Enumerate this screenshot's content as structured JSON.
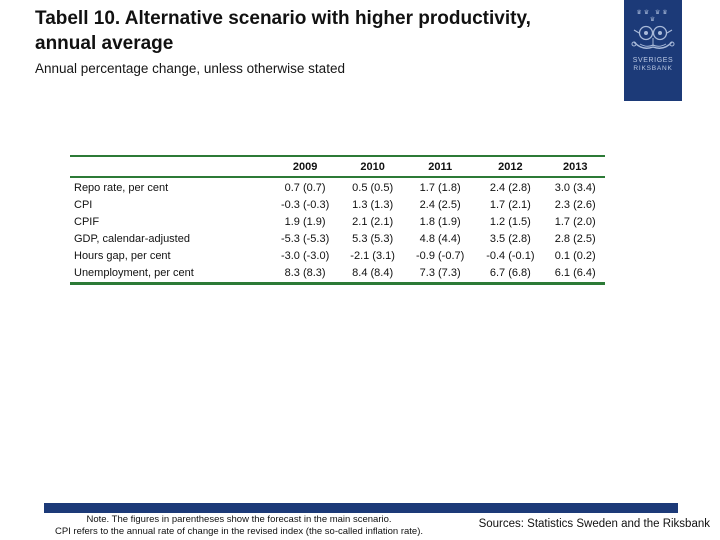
{
  "title": {
    "line1": "Tabell 10. Alternative scenario with higher productivity,",
    "line2": "annual average",
    "subtitle": "Annual percentage change, unless otherwise stated"
  },
  "logo": {
    "crowns_top": "♛♛ ♛♛",
    "crowns_bottom": "♛",
    "name_line1": "SVERIGES",
    "name_line2": "RIKSBANK"
  },
  "table": {
    "columns": [
      "",
      "2009",
      "2010",
      "2011",
      "2012",
      "2013"
    ],
    "rows": [
      {
        "label": "Repo rate, per cent",
        "values": [
          "0.7 (0.7)",
          "0.5 (0.5)",
          "1.7 (1.8)",
          "2.4 (2.8)",
          "3.0 (3.4)"
        ]
      },
      {
        "label": "CPI",
        "values": [
          "-0.3 (-0.3)",
          "1.3 (1.3)",
          "2.4 (2.5)",
          "1.7 (2.1)",
          "2.3 (2.6)"
        ]
      },
      {
        "label": "CPIF",
        "values": [
          "1.9 (1.9)",
          "2.1 (2.1)",
          "1.8 (1.9)",
          "1.2 (1.5)",
          "1.7 (2.0)"
        ]
      },
      {
        "label": "GDP, calendar-adjusted",
        "values": [
          "-5.3 (-5.3)",
          "5.3 (5.3)",
          "4.8 (4.4)",
          "3.5 (2.8)",
          "2.8 (2.5)"
        ]
      },
      {
        "label": "Hours gap, per cent",
        "values": [
          "-3.0 (-3.0)",
          "-2.1 (3.1)",
          "-0.9 (-0.7)",
          "-0.4 (-0.1)",
          "0.1 (0.2)"
        ]
      },
      {
        "label": "Unemployment, per cent",
        "values": [
          "8.3 (8.3)",
          "8.4 (8.4)",
          "7.3 (7.3)",
          "6.7 (6.8)",
          "6.1 (6.4)"
        ]
      }
    ]
  },
  "footer": {
    "note_line1": "Note. The figures in parentheses show the forecast in the main scenario.",
    "note_line2": "CPI refers to the annual rate of change in the revised index (the so-called inflation rate).",
    "sources": "Sources: Statistics Sweden and the Riksbank"
  },
  "colors": {
    "navy": "#1c3a78",
    "table_line_green": "#2c7a36",
    "logo_art": "#a9bad9",
    "background": "#ffffff"
  }
}
